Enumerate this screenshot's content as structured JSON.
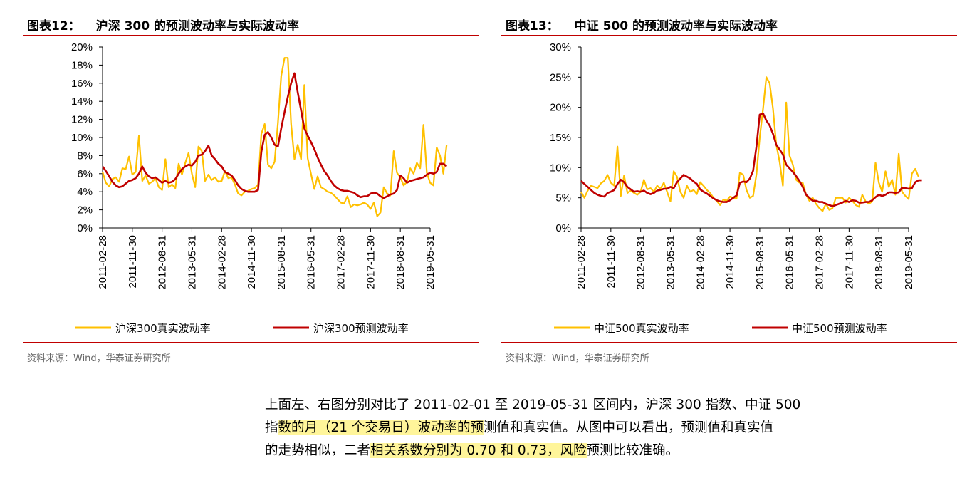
{
  "figures": [
    {
      "label": "图表12：",
      "title": "沪深 300 的预测波动率与实际波动率",
      "source": "资料来源：Wind，华泰证券研究所",
      "chart_data": {
        "type": "line",
        "ylim": [
          0,
          20
        ],
        "yticks": [
          0,
          2,
          4,
          6,
          8,
          10,
          12,
          14,
          16,
          18,
          20
        ],
        "ytick_labels": [
          "0%",
          "2%",
          "4%",
          "6%",
          "8%",
          "10%",
          "12%",
          "14%",
          "16%",
          "18%",
          "20%"
        ],
        "x_range": [
          0,
          99
        ],
        "xtick_positions": [
          0,
          9,
          18,
          27,
          36,
          45,
          54,
          63,
          72,
          81,
          90,
          99
        ],
        "xtick_labels": [
          "2011-02-28",
          "2011-11-30",
          "2012-08-31",
          "2013-05-31",
          "2014-02-28",
          "2014-11-30",
          "2015-08-31",
          "2016-05-31",
          "2017-02-28",
          "2017-11-30",
          "2018-08-31",
          "2019-05-31"
        ],
        "legend": "bottom",
        "series": [
          {
            "name": "沪深300真实波动率",
            "color": "#ffc000",
            "values": [
              6.2,
              5.0,
              4.6,
              5.4,
              5.6,
              5.1,
              6.6,
              6.5,
              7.9,
              5.9,
              6.2,
              10.2,
              5.2,
              5.8,
              4.9,
              5.1,
              5.5,
              4.5,
              4.2,
              7.6,
              4.5,
              4.8,
              4.4,
              7.1,
              5.9,
              7.2,
              8.3,
              6.0,
              4.5,
              9.0,
              8.5,
              5.2,
              5.9,
              5.3,
              5.6,
              5.1,
              5.2,
              6.3,
              5.5,
              5.6,
              4.8,
              3.8,
              3.6,
              4.0,
              4.1,
              4.3,
              4.4,
              4.8,
              10.4,
              11.5,
              7.0,
              6.6,
              7.3,
              11.6,
              16.8,
              18.8,
              18.8,
              11.5,
              7.6,
              9.2,
              7.6,
              15.8,
              7.7,
              6.0,
              4.3,
              5.7,
              4.5,
              4.3,
              4.0,
              3.9,
              3.6,
              3.2,
              2.8,
              2.7,
              3.5,
              2.3,
              2.6,
              2.5,
              2.6,
              2.8,
              2.6,
              2.1,
              2.8,
              1.3,
              1.7,
              4.5,
              3.8,
              3.6,
              8.5,
              6.1,
              5.6,
              4.7,
              5.1,
              6.6,
              6.0,
              7.2,
              6.6,
              11.4,
              6.1,
              5.0,
              4.7,
              8.9,
              8.0,
              6.0,
              9.2
            ]
          },
          {
            "name": "沪深300预测波动率",
            "color": "#c00000",
            "values": [
              6.8,
              6.3,
              5.7,
              5.1,
              4.7,
              4.5,
              4.6,
              4.9,
              5.2,
              5.3,
              5.5,
              6.0,
              6.8,
              6.1,
              5.7,
              5.5,
              5.6,
              5.3,
              5.0,
              5.2,
              5.0,
              5.1,
              5.4,
              6.0,
              6.5,
              6.8,
              7.0,
              6.9,
              7.3,
              8.0,
              8.1,
              8.5,
              9.1,
              8.0,
              7.6,
              7.1,
              6.8,
              6.2,
              6.0,
              5.8,
              5.3,
              4.7,
              4.3,
              4.1,
              4.0,
              4.0,
              4.0,
              4.2,
              8.4,
              10.3,
              10.6,
              10.0,
              9.2,
              9.0,
              11.0,
              12.8,
              14.5,
              16.0,
              17.1,
              15.0,
              13.0,
              11.0,
              10.2,
              9.5,
              8.7,
              7.8,
              7.0,
              6.3,
              5.8,
              5.2,
              4.7,
              4.4,
              4.2,
              4.1,
              4.1,
              4.0,
              3.9,
              3.6,
              3.4,
              3.5,
              3.5,
              3.8,
              3.9,
              3.8,
              3.5,
              3.3,
              3.5,
              3.7,
              3.8,
              4.2,
              5.8,
              5.5,
              5.0,
              5.2,
              5.3,
              5.4,
              5.5,
              5.6,
              5.9,
              6.1,
              6.0,
              6.2,
              7.1,
              7.1,
              6.8
            ]
          }
        ]
      }
    },
    {
      "label": "图表13：",
      "title": "中证 500 的预测波动率与实际波动率",
      "source": "资料来源：Wind，华泰证券研究所",
      "chart_data": {
        "type": "line",
        "ylim": [
          0,
          30
        ],
        "yticks": [
          0,
          5,
          10,
          15,
          20,
          25,
          30
        ],
        "ytick_labels": [
          "0%",
          "5%",
          "10%",
          "15%",
          "20%",
          "25%",
          "30%"
        ],
        "x_range": [
          0,
          99
        ],
        "xtick_positions": [
          0,
          9,
          18,
          27,
          36,
          45,
          54,
          63,
          72,
          81,
          90,
          99
        ],
        "xtick_labels": [
          "2011-02-28",
          "2011-11-30",
          "2012-08-31",
          "2013-05-31",
          "2014-02-28",
          "2014-11-30",
          "2015-08-31",
          "2016-05-31",
          "2017-02-28",
          "2017-11-30",
          "2018-08-31",
          "2019-05-31"
        ],
        "legend": "bottom",
        "series": [
          {
            "name": "中证500真实波动率",
            "color": "#ffc000",
            "values": [
              6.0,
              5.0,
              6.2,
              7.0,
              6.8,
              6.6,
              7.4,
              7.8,
              8.8,
              7.5,
              7.0,
              13.5,
              5.3,
              8.7,
              5.8,
              6.2,
              5.8,
              5.5,
              6.0,
              8.0,
              6.4,
              6.6,
              6.0,
              7.0,
              6.5,
              7.5,
              6.0,
              4.4,
              9.4,
              8.5,
              6.0,
              5.0,
              7.0,
              6.0,
              6.3,
              5.6,
              7.6,
              7.0,
              6.3,
              5.8,
              5.0,
              4.5,
              3.8,
              4.7,
              4.5,
              5.2,
              5.0,
              4.9,
              9.2,
              8.8,
              6.3,
              5.0,
              5.3,
              8.9,
              15.0,
              19.8,
              25.0,
              24.0,
              19.8,
              13.8,
              11.0,
              7.0,
              20.8,
              12.0,
              10.5,
              8.0,
              7.5,
              7.5,
              5.5,
              4.5,
              5.0,
              4.0,
              3.3,
              2.8,
              4.0,
              3.0,
              3.3,
              5.0,
              5.0,
              5.0,
              4.2,
              5.0,
              4.5,
              3.8,
              3.5,
              5.5,
              4.4,
              4.0,
              4.4,
              10.8,
              7.5,
              6.0,
              9.4,
              6.8,
              8.0,
              5.5,
              12.3,
              6.0,
              5.3,
              4.8,
              9.0,
              9.8,
              8.5
            ]
          },
          {
            "name": "中证500预测波动率",
            "color": "#c00000",
            "values": [
              7.8,
              7.3,
              6.8,
              6.3,
              5.8,
              5.5,
              5.3,
              5.2,
              5.8,
              6.0,
              6.3,
              7.3,
              8.0,
              7.6,
              6.8,
              6.4,
              6.0,
              6.1,
              6.0,
              6.2,
              5.8,
              5.6,
              5.8,
              6.2,
              6.3,
              6.5,
              6.5,
              6.8,
              6.6,
              7.6,
              8.2,
              8.8,
              8.5,
              8.2,
              7.7,
              7.3,
              6.4,
              6.0,
              5.7,
              5.3,
              4.9,
              4.6,
              4.4,
              4.3,
              4.3,
              4.6,
              5.0,
              5.4,
              7.5,
              7.7,
              7.6,
              8.2,
              9.5,
              13.5,
              18.8,
              19.0,
              17.8,
              17.0,
              15.6,
              13.8,
              13.0,
              12.2,
              10.5,
              9.9,
              9.3,
              8.6,
              7.8,
              6.8,
              5.5,
              5.0,
              4.5,
              4.5,
              4.3,
              4.3,
              4.0,
              3.8,
              3.6,
              3.8,
              4.0,
              4.2,
              4.5,
              4.3,
              4.6,
              4.5,
              4.2,
              4.2,
              4.3,
              4.3,
              4.6,
              5.1,
              5.5,
              5.3,
              5.5,
              5.9,
              5.9,
              5.8,
              5.9,
              6.7,
              6.6,
              6.5,
              6.6,
              7.6,
              7.9,
              7.9
            ]
          }
        ]
      }
    }
  ],
  "paragraph": {
    "line1": "上面左、右图分别对比了 2011-02-01 至 2019-05-31 区间内，沪深 300 指数、中证 500",
    "line2_a": "指",
    "line2_hl": "数的月（21 个交易日）波动率的预",
    "line2_b": "测值和真实值。从图中可以看出，预测值和真实值",
    "line3_a": "的走势相似，二者",
    "line3_hl": "相关系数分别为 0.70 和 0.73，风险",
    "line3_b": "预测比较准确。"
  }
}
